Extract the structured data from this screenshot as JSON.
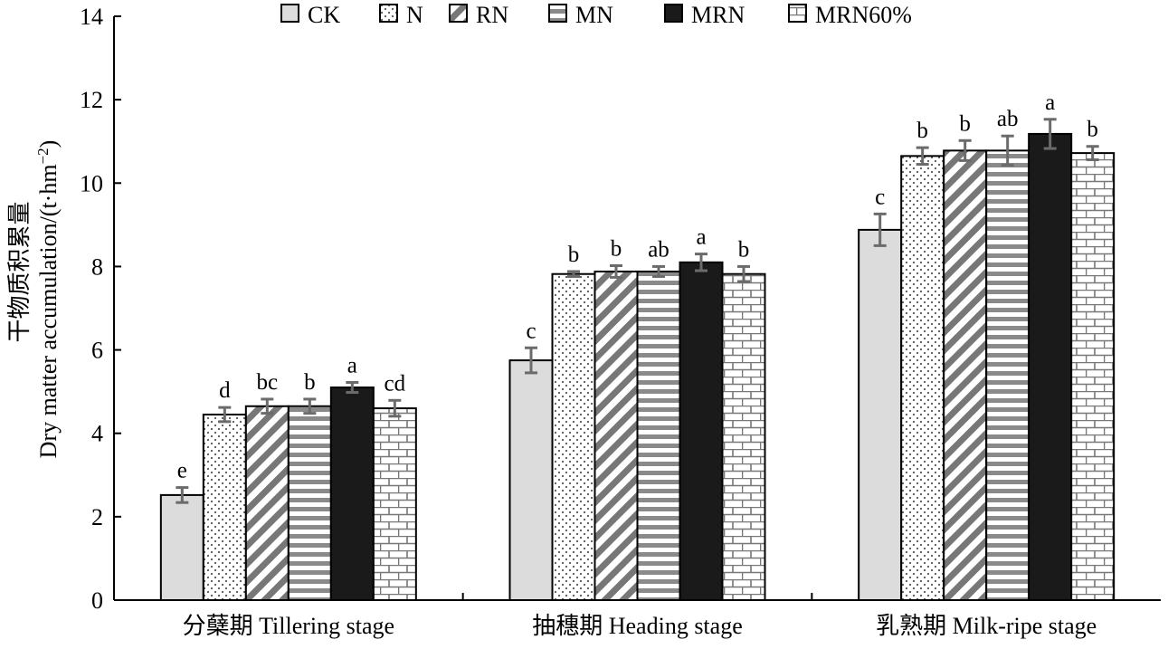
{
  "chart_data": {
    "type": "bar",
    "title": "",
    "ylabel_cn": "干物质积累量",
    "ylabel_en_prefix": "Dry matter accumulation/(t·hm",
    "ylabel_en_sup": "−2",
    "ylabel_en_suffix": ")",
    "xlabel": "",
    "ylim": [
      0,
      14
    ],
    "yticks": [
      0,
      2,
      4,
      6,
      8,
      10,
      12,
      14
    ],
    "grid": false,
    "legend_position": "top",
    "categories": [
      "分蘖期 Tillering stage",
      "抽穗期 Heading stage",
      "乳熟期 Milk-ripe stage"
    ],
    "series": [
      {
        "name": "CK",
        "pattern": "solid-light",
        "values": [
          2.52,
          5.75,
          8.88
        ],
        "errors": [
          0.18,
          0.3,
          0.38
        ],
        "letters": [
          "e",
          "c",
          "c"
        ]
      },
      {
        "name": "N",
        "pattern": "dots",
        "values": [
          4.45,
          7.82,
          10.65
        ],
        "errors": [
          0.17,
          0.06,
          0.2
        ],
        "letters": [
          "d",
          "b",
          "b"
        ]
      },
      {
        "name": "RN",
        "pattern": "diagonal",
        "values": [
          4.65,
          7.88,
          10.78
        ],
        "errors": [
          0.17,
          0.14,
          0.24
        ],
        "letters": [
          "bc",
          "b",
          "b"
        ]
      },
      {
        "name": "MN",
        "pattern": "horizontal",
        "values": [
          4.65,
          7.88,
          10.78
        ],
        "errors": [
          0.17,
          0.12,
          0.35
        ],
        "letters": [
          "b",
          "ab",
          "ab"
        ]
      },
      {
        "name": "MRN",
        "pattern": "solid-dark",
        "values": [
          5.1,
          8.1,
          11.18
        ],
        "errors": [
          0.12,
          0.2,
          0.35
        ],
        "letters": [
          "a",
          "a",
          "a"
        ]
      },
      {
        "name": "MRN60%",
        "pattern": "brick",
        "values": [
          4.6,
          7.82,
          10.72
        ],
        "errors": [
          0.19,
          0.18,
          0.16
        ],
        "letters": [
          "cd",
          "b",
          "b"
        ]
      }
    ]
  }
}
